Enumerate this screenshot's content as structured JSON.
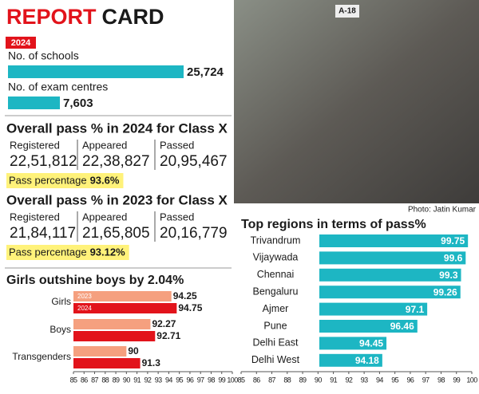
{
  "title_red": "REPORT",
  "title_dark": "CARD",
  "year": "2024",
  "pass_2024": {
    "title": "Overall pass % in 2024 for Class X",
    "columns": [
      {
        "label": "Registered",
        "value": "22,51,812"
      },
      {
        "label": "Appeared",
        "value": "22,38,827"
      },
      {
        "label": "Passed",
        "value": "20,95,467"
      }
    ],
    "pass_label": "Pass percentage",
    "pass_value": "93.6%"
  },
  "pass_2023": {
    "title": "Overall pass % in 2023 for Class X",
    "columns": [
      {
        "label": "Registered",
        "value": "21,84,117"
      },
      {
        "label": "Appeared",
        "value": "21,65,805"
      },
      {
        "label": "Passed",
        "value": "20,16,779"
      }
    ],
    "pass_label": "Pass percentage",
    "pass_value": "93.12%"
  },
  "photo_tag": "A-18",
  "photo_credit": "Photo: Jatin Kumar",
  "chart_data": [
    {
      "type": "bar",
      "orientation": "horizontal",
      "categories": [
        "No. of schools",
        "No. of exam centres"
      ],
      "values": [
        25724,
        7603
      ],
      "value_labels": [
        "25,724",
        "7,603"
      ],
      "color": "#1db6c3"
    },
    {
      "type": "bar",
      "orientation": "horizontal",
      "title": "Girls outshine boys by 2.04%",
      "categories": [
        "Girls",
        "Boys",
        "Transgenders"
      ],
      "series": [
        {
          "name": "2023",
          "color": "#f5a07f",
          "values": [
            94.25,
            92.27,
            90
          ]
        },
        {
          "name": "2024",
          "color": "#e2131b",
          "values": [
            94.75,
            92.71,
            91.3
          ]
        }
      ],
      "xlim": [
        85,
        100
      ],
      "xticks": [
        85,
        86,
        87,
        88,
        89,
        90,
        91,
        92,
        93,
        94,
        95,
        96,
        97,
        98,
        99,
        100
      ]
    },
    {
      "type": "bar",
      "orientation": "horizontal",
      "title": "Top regions in terms of pass%",
      "categories": [
        "Trivandrum",
        "Vijaywada",
        "Chennai",
        "Bengaluru",
        "Ajmer",
        "Pune",
        "Delhi East",
        "Delhi West"
      ],
      "values": [
        99.75,
        99.6,
        99.3,
        99.26,
        97.1,
        96.46,
        94.45,
        94.18
      ],
      "color": "#1db6c3",
      "xlim": [
        85,
        100
      ],
      "xticks": [
        85,
        86,
        87,
        88,
        89,
        90,
        91,
        92,
        93,
        94,
        95,
        96,
        97,
        98,
        99,
        100
      ]
    }
  ]
}
